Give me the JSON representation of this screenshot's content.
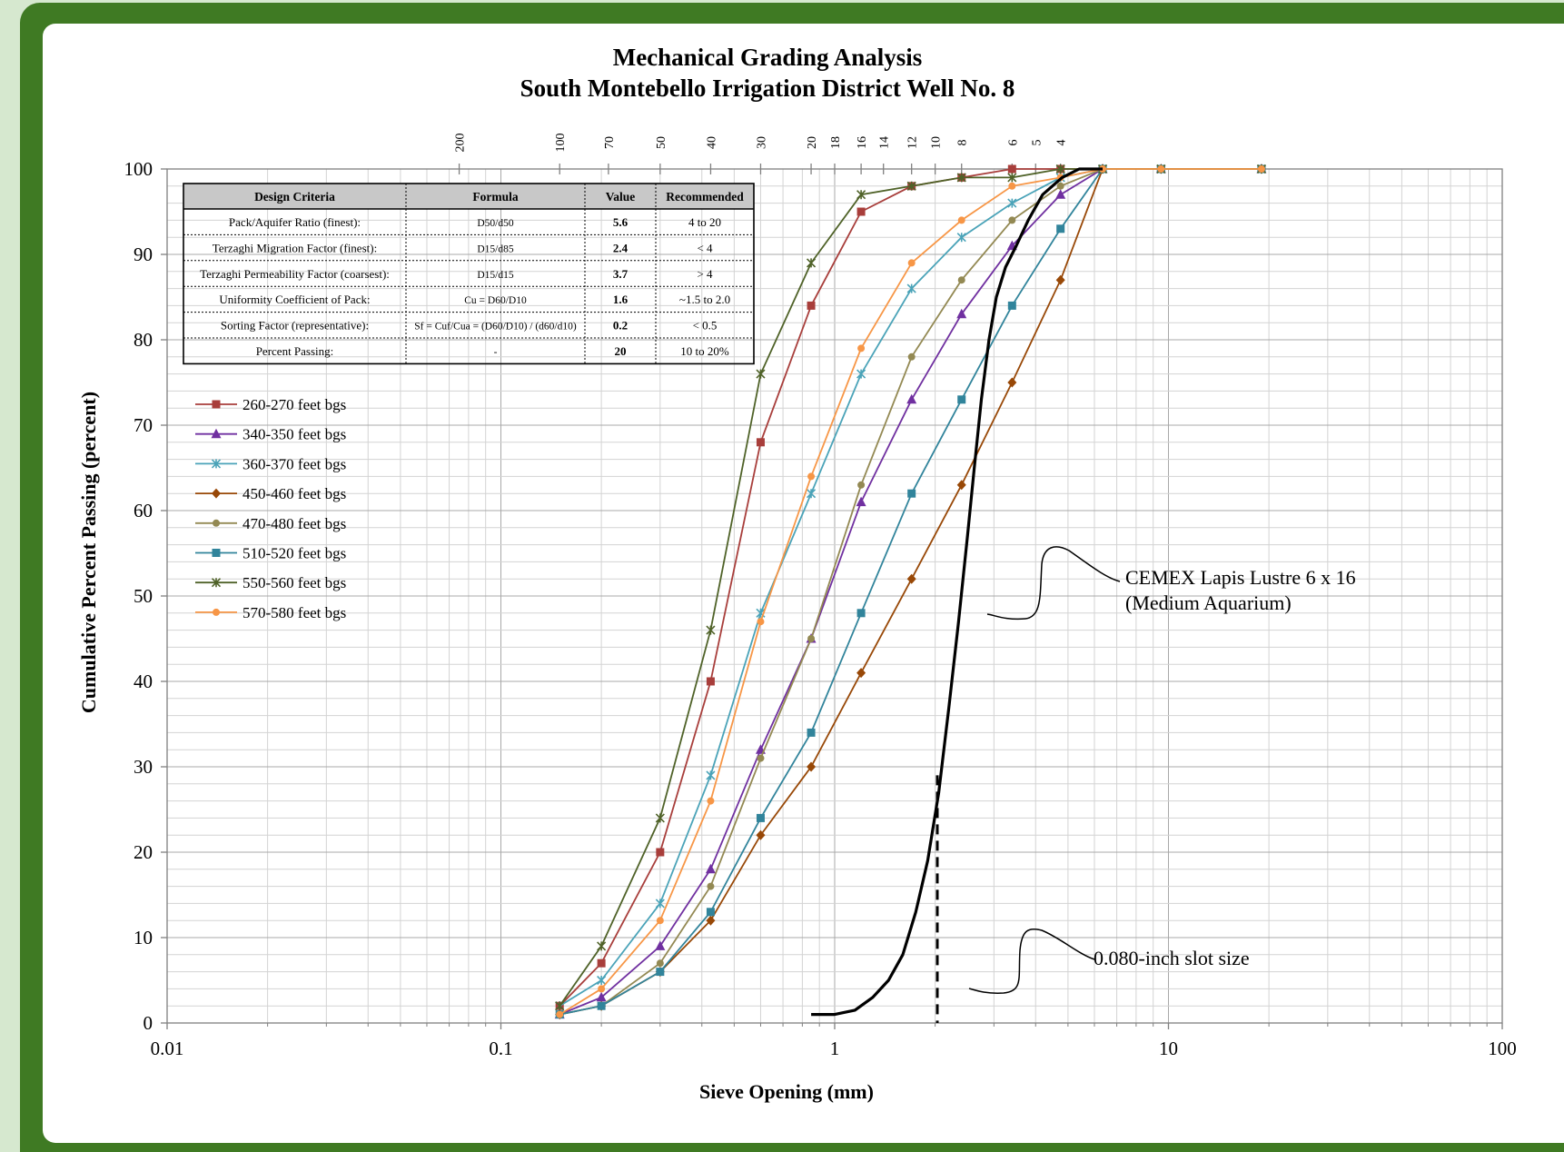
{
  "colors": {
    "frame": "#3f7a23",
    "background": "#d6e8cf",
    "plot_border": "#808080",
    "grid": "#d3d3d3",
    "text": "#000000"
  },
  "chart_data": {
    "type": "line",
    "title": "Mechanical Grading Analysis",
    "subtitle": "South Montebello Irrigation District Well No. 8",
    "xlabel": "Sieve Opening (mm)",
    "ylabel": "Cumulative Percent Passing (percent)",
    "x_scale": "log",
    "xlim": [
      0.01,
      100
    ],
    "ylim": [
      0,
      100
    ],
    "x_ticks": [
      0.01,
      0.1,
      1,
      10,
      100
    ],
    "x_tick_labels": [
      "0.01",
      "0.1",
      "1",
      "10",
      "100"
    ],
    "y_ticks": [
      0,
      10,
      20,
      30,
      40,
      50,
      60,
      70,
      80,
      90,
      100
    ],
    "y_tick_labels": [
      "0",
      "10",
      "20",
      "30",
      "40",
      "50",
      "60",
      "70",
      "80",
      "90",
      "100"
    ],
    "grid": true,
    "legend_position": "upper-left",
    "sieve_numbers": [
      {
        "label": "200",
        "x": 0.075
      },
      {
        "label": "100",
        "x": 0.15
      },
      {
        "label": "70",
        "x": 0.21
      },
      {
        "label": "50",
        "x": 0.3
      },
      {
        "label": "40",
        "x": 0.425
      },
      {
        "label": "30",
        "x": 0.6
      },
      {
        "label": "20",
        "x": 0.85
      },
      {
        "label": "18",
        "x": 1.0
      },
      {
        "label": "16",
        "x": 1.2
      },
      {
        "label": "14",
        "x": 1.4
      },
      {
        "label": "12",
        "x": 1.7
      },
      {
        "label": "10",
        "x": 2.0
      },
      {
        "label": "8",
        "x": 2.4
      },
      {
        "label": "6",
        "x": 3.4
      },
      {
        "label": "5",
        "x": 4.0
      },
      {
        "label": "4",
        "x": 4.75
      }
    ],
    "x": [
      0.15,
      0.2,
      0.3,
      0.425,
      0.6,
      0.85,
      1.2,
      1.7,
      2.4,
      3.4,
      4.75,
      6.35,
      9.5,
      19
    ],
    "series": [
      {
        "name": "260-270 feet bgs",
        "color": "#a83e3b",
        "marker": "square",
        "values": [
          2,
          7,
          20,
          40,
          68,
          84,
          95,
          98,
          99,
          100,
          100,
          100,
          100,
          100
        ]
      },
      {
        "name": "340-350 feet bgs",
        "color": "#7030a0",
        "marker": "triangle",
        "values": [
          1,
          3,
          9,
          18,
          32,
          45,
          61,
          73,
          83,
          91,
          97,
          100,
          100,
          100
        ]
      },
      {
        "name": "360-370 feet bgs",
        "color": "#4aa3b8",
        "marker": "x",
        "values": [
          2,
          5,
          14,
          29,
          48,
          62,
          76,
          86,
          92,
          96,
          99,
          100,
          100,
          100
        ]
      },
      {
        "name": "450-460 feet bgs",
        "color": "#984807",
        "marker": "diamond",
        "values": [
          1,
          2,
          6,
          12,
          22,
          30,
          41,
          52,
          63,
          75,
          87,
          100,
          100,
          100
        ]
      },
      {
        "name": "470-480 feet bgs",
        "color": "#938953",
        "marker": "circle",
        "values": [
          1,
          2,
          7,
          16,
          31,
          45,
          63,
          78,
          87,
          94,
          98,
          100,
          100,
          100
        ]
      },
      {
        "name": "510-520 feet bgs",
        "color": "#31849b",
        "marker": "square",
        "values": [
          1,
          2,
          6,
          13,
          24,
          34,
          48,
          62,
          73,
          84,
          93,
          100,
          100,
          100
        ]
      },
      {
        "name": "550-560 feet bgs",
        "color": "#4f6228",
        "marker": "x",
        "values": [
          2,
          9,
          24,
          46,
          76,
          89,
          97,
          98,
          99,
          99,
          100,
          100,
          100,
          100
        ]
      },
      {
        "name": "570-580 feet bgs",
        "color": "#f79646",
        "marker": "circle",
        "values": [
          1,
          4,
          12,
          26,
          47,
          64,
          79,
          89,
          94,
          98,
          99,
          100,
          100,
          100
        ]
      }
    ],
    "filter_pack_curve": {
      "label_line1": "CEMEX Lapis Lustre 6 x 16",
      "label_line2": "(Medium Aquarium)",
      "color": "#000000",
      "x": [
        0.85,
        1.0,
        1.15,
        1.3,
        1.45,
        1.6,
        1.75,
        1.9,
        2.05,
        2.2,
        2.35,
        2.5,
        2.62,
        2.75,
        2.9,
        3.05,
        3.25,
        3.5,
        3.8,
        4.2,
        4.8,
        5.4,
        6.35
      ],
      "values": [
        1,
        1,
        1.5,
        3,
        5,
        8,
        13,
        19,
        27,
        37,
        47,
        57,
        65,
        73,
        80,
        85,
        88.5,
        91,
        94,
        97,
        99,
        100,
        100
      ]
    },
    "slot_size": {
      "label": "0.080-inch slot size",
      "x": 2.03,
      "y_range": [
        0,
        29
      ]
    },
    "design_table": {
      "headers": [
        "Design Criteria",
        "Formula",
        "Value",
        "Recommended"
      ],
      "rows": [
        [
          "Pack/Aquifer Ratio (finest):",
          "D50/d50",
          "5.6",
          "4 to 20"
        ],
        [
          "Terzaghi Migration Factor (finest):",
          "D15/d85",
          "2.4",
          "< 4"
        ],
        [
          "Terzaghi Permeability Factor (coarsest):",
          "D15/d15",
          "3.7",
          "> 4"
        ],
        [
          "Uniformity Coefficient of Pack:",
          "Cu = D60/D10",
          "1.6",
          "~1.5 to 2.0"
        ],
        [
          "Sorting Factor (representative):",
          "Sf = Cuf/Cua = (D60/D10) / (d60/d10)",
          "0.2",
          "< 0.5"
        ],
        [
          "Percent Passing:",
          "-",
          "20",
          "10 to 20%"
        ]
      ]
    }
  }
}
